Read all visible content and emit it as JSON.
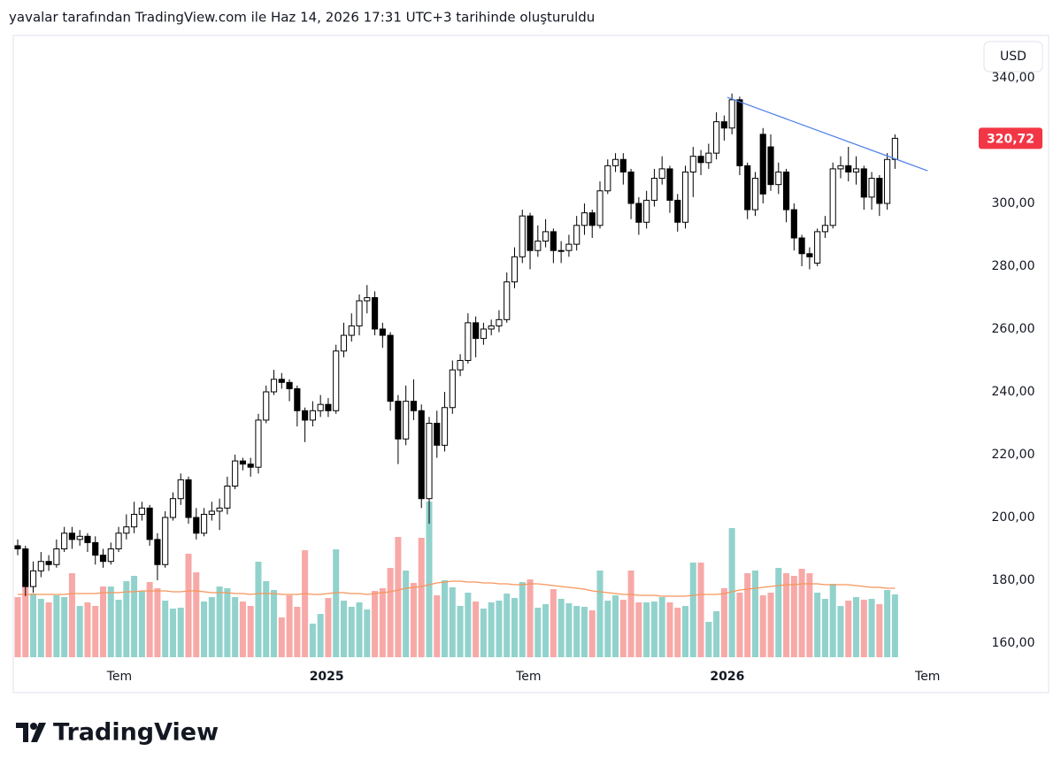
{
  "header": "yavalar tarafından TradingView.com ile Haz 14, 2026 17:31 UTC+3 tarihinde oluşturuldu",
  "brand": "TradingView",
  "currency": "USD",
  "chart_data": {
    "type": "candlestick",
    "up_color": "#ffffff",
    "down_color": "#000000",
    "wick_color": "#000000",
    "volume_up_color": "#92d2cc",
    "volume_down_color": "#f7a9a7",
    "ma_color": "#f7955a",
    "trendline_color": "#4d7fe8",
    "last_color": "#f23645",
    "ylim": [
      155.5,
      353.5
    ],
    "yticks": [
      {
        "value": 160,
        "label": "160,00"
      },
      {
        "value": 180,
        "label": "180,00"
      },
      {
        "value": 200,
        "label": "200,00"
      },
      {
        "value": 220,
        "label": "220,00"
      },
      {
        "value": 240,
        "label": "240,00"
      },
      {
        "value": 260,
        "label": "260,00"
      },
      {
        "value": 280,
        "label": "280,00"
      },
      {
        "value": 300,
        "label": "300,00"
      },
      {
        "value": 320,
        "label": "320,00"
      },
      {
        "value": 340,
        "label": "340,00"
      }
    ],
    "xlim": [
      -0.57,
      123.1
    ],
    "xticks": [
      {
        "value": 13.1,
        "label": "Tem"
      },
      {
        "value": 39.8,
        "label": "2025"
      },
      {
        "value": 65.8,
        "label": "Tem"
      },
      {
        "value": 91.4,
        "label": "2026"
      },
      {
        "value": 117.2,
        "label": "Tem"
      }
    ],
    "open": [
      191,
      190,
      178,
      183,
      186,
      185,
      190,
      195,
      193,
      194,
      192,
      188,
      186,
      190,
      195,
      197,
      201,
      203,
      193,
      185,
      200,
      206,
      212,
      200,
      195,
      201,
      202,
      203,
      210,
      218,
      217,
      216,
      231,
      240,
      244,
      243,
      241,
      234,
      231,
      234,
      236,
      234,
      253,
      258,
      261,
      269,
      270,
      260,
      258,
      237,
      225,
      237,
      234,
      206,
      230,
      223,
      235,
      247,
      250,
      262,
      257,
      260,
      261,
      263,
      275,
      283,
      296,
      285,
      288,
      291,
      285,
      285,
      287,
      293,
      297,
      293,
      304,
      312,
      314,
      310,
      300,
      294,
      301,
      308,
      311,
      301,
      294,
      310,
      315,
      313,
      316,
      326,
      324,
      333,
      312,
      298,
      322,
      318,
      306,
      310,
      298,
      289,
      284,
      281,
      291,
      293,
      311,
      312,
      310,
      311,
      302,
      308,
      300,
      314
    ],
    "high": [
      193,
      191,
      186,
      189,
      188,
      193,
      197,
      197,
      196,
      195,
      194,
      190,
      192,
      197,
      201,
      205,
      205,
      204,
      195,
      202,
      208,
      214,
      213,
      203,
      203,
      205,
      206,
      213,
      220,
      219,
      219,
      233,
      242,
      247,
      246,
      244,
      242,
      235,
      237,
      239,
      238,
      255,
      262,
      265,
      271,
      274,
      272,
      262,
      259,
      239,
      242,
      244,
      236,
      232,
      234,
      240,
      250,
      252,
      265,
      264,
      262,
      263,
      266,
      278,
      286,
      298,
      297,
      293,
      295,
      292,
      288,
      290,
      296,
      300,
      298,
      307,
      314,
      316,
      316,
      311,
      302,
      304,
      311,
      315,
      312,
      303,
      312,
      318,
      317,
      319,
      329,
      328,
      335,
      334,
      313,
      310,
      324,
      322,
      313,
      311,
      300,
      290,
      286,
      292,
      296,
      313,
      315,
      318,
      315,
      312,
      310,
      309,
      316,
      322
    ],
    "low": [
      188,
      175,
      176,
      181,
      183,
      184,
      189,
      190,
      191,
      189,
      185,
      184,
      185,
      189,
      193,
      195,
      199,
      191,
      180,
      184,
      199,
      204,
      198,
      193,
      194,
      199,
      196,
      201,
      209,
      215,
      213,
      214,
      230,
      239,
      241,
      237,
      229,
      224,
      229,
      232,
      232,
      233,
      251,
      256,
      258,
      265,
      258,
      254,
      234,
      217,
      223,
      231,
      203,
      198,
      219,
      221,
      233,
      245,
      249,
      251,
      255,
      258,
      259,
      262,
      273,
      281,
      279,
      283,
      286,
      281,
      281,
      283,
      285,
      290,
      289,
      292,
      303,
      310,
      306,
      295,
      290,
      292,
      299,
      306,
      297,
      291,
      292,
      302,
      309,
      311,
      314,
      320,
      322,
      309,
      295,
      296,
      300,
      304,
      303,
      294,
      285,
      280,
      279,
      280,
      289,
      292,
      308,
      307,
      306,
      298,
      298,
      296,
      298,
      311
    ],
    "close": [
      190,
      178,
      183,
      186,
      185,
      190,
      195,
      193,
      194,
      192,
      188,
      186,
      190,
      195,
      197,
      201,
      203,
      193,
      185,
      200,
      206,
      212,
      200,
      195,
      201,
      202,
      203,
      210,
      218,
      217,
      216,
      231,
      240,
      244,
      243,
      241,
      234,
      231,
      234,
      236,
      234,
      253,
      258,
      261,
      269,
      270,
      260,
      258,
      237,
      225,
      237,
      234,
      206,
      230,
      223,
      235,
      247,
      250,
      262,
      257,
      260,
      261,
      263,
      275,
      283,
      296,
      285,
      288,
      291,
      285,
      285,
      287,
      293,
      297,
      293,
      304,
      312,
      314,
      310,
      300,
      294,
      301,
      308,
      311,
      301,
      294,
      310,
      315,
      313,
      316,
      326,
      324,
      333,
      312,
      298,
      308,
      303,
      306,
      310,
      298,
      289,
      284,
      283,
      291,
      293,
      311,
      312,
      310,
      311,
      302,
      308,
      300,
      314,
      320.72
    ],
    "last_value_label": "320,72",
    "volume": [
      68,
      108,
      72,
      66,
      62,
      70,
      68,
      95,
      58,
      62,
      58,
      80,
      80,
      65,
      86,
      92,
      75,
      85,
      78,
      64,
      55,
      56,
      117,
      96,
      63,
      68,
      80,
      78,
      68,
      63,
      58,
      108,
      86,
      76,
      45,
      70,
      57,
      121,
      38,
      49,
      67,
      122,
      64,
      57,
      62,
      54,
      75,
      78,
      101,
      136,
      98,
      84,
      135,
      176,
      70,
      87,
      79,
      58,
      73,
      63,
      55,
      62,
      64,
      72,
      67,
      85,
      88,
      56,
      60,
      77,
      66,
      61,
      58,
      57,
      53,
      98,
      64,
      70,
      65,
      98,
      62,
      62,
      63,
      68,
      62,
      56,
      58,
      107,
      107,
      40,
      52,
      78,
      146,
      73,
      95,
      98,
      70,
      73,
      101,
      95,
      92,
      100,
      95,
      73,
      66,
      83,
      58,
      64,
      68,
      65,
      66,
      60,
      76,
      71
    ],
    "volume_ma": [
      71,
      71,
      71,
      71,
      71,
      71,
      71,
      72,
      72,
      72,
      72,
      73,
      73,
      73,
      74,
      74,
      75,
      75,
      75,
      75,
      74,
      74,
      75,
      75,
      74,
      73,
      73,
      73,
      72,
      72,
      71,
      72,
      72,
      72,
      71,
      71,
      71,
      72,
      71,
      71,
      72,
      73,
      73,
      72,
      72,
      71,
      72,
      73,
      74,
      76,
      78,
      79,
      80,
      82,
      84,
      85,
      86,
      86,
      85,
      85,
      84,
      84,
      83,
      83,
      82,
      82,
      83,
      83,
      82,
      81,
      80,
      79,
      78,
      77,
      75,
      74,
      73,
      72,
      71,
      71,
      70,
      70,
      70,
      69,
      69,
      69,
      69,
      70,
      71,
      71,
      71,
      72,
      74,
      76,
      77,
      78,
      79,
      80,
      81,
      82,
      82,
      83,
      83,
      83,
      82,
      82,
      82,
      82,
      81,
      80,
      79,
      79,
      78,
      78
    ],
    "trendline": {
      "x": [
        91.4,
        117.2
      ],
      "y": [
        333.8,
        310.4
      ]
    }
  }
}
